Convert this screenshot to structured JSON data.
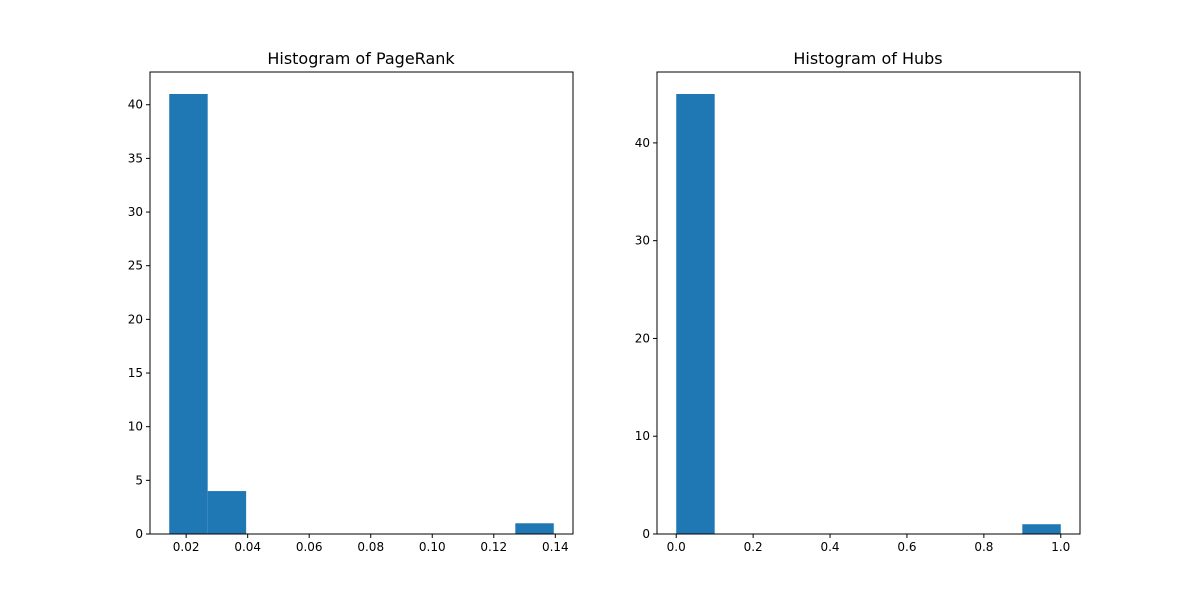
{
  "chart_data": [
    {
      "type": "bar",
      "title": "Histogram of PageRank",
      "xlabel": "",
      "ylabel": "",
      "bins": [
        {
          "x0": 0.0145,
          "x1": 0.027,
          "count": 41
        },
        {
          "x0": 0.027,
          "x1": 0.0395,
          "count": 4
        },
        {
          "x0": 0.0395,
          "x1": 0.052,
          "count": 0
        },
        {
          "x0": 0.052,
          "x1": 0.0645,
          "count": 0
        },
        {
          "x0": 0.0645,
          "x1": 0.077,
          "count": 0
        },
        {
          "x0": 0.077,
          "x1": 0.0895,
          "count": 0
        },
        {
          "x0": 0.0895,
          "x1": 0.102,
          "count": 0
        },
        {
          "x0": 0.102,
          "x1": 0.1145,
          "count": 0
        },
        {
          "x0": 0.1145,
          "x1": 0.127,
          "count": 0
        },
        {
          "x0": 0.127,
          "x1": 0.1395,
          "count": 1
        }
      ],
      "xlim": [
        0.00825,
        0.14575
      ],
      "ylim": [
        0,
        43.05
      ],
      "xticks": [
        0.02,
        0.04,
        0.06,
        0.08,
        0.1,
        0.12,
        0.14
      ],
      "xtick_labels": [
        "0.02",
        "0.04",
        "0.06",
        "0.08",
        "0.10",
        "0.12",
        "0.14"
      ],
      "yticks": [
        0,
        5,
        10,
        15,
        20,
        25,
        30,
        35,
        40
      ],
      "ytick_labels": [
        "0",
        "5",
        "10",
        "15",
        "20",
        "25",
        "30",
        "35",
        "40"
      ],
      "bar_color": "#1f77b4",
      "grid": false
    },
    {
      "type": "bar",
      "title": "Histogram of Hubs",
      "xlabel": "",
      "ylabel": "",
      "bins": [
        {
          "x0": 0.0,
          "x1": 0.1,
          "count": 45
        },
        {
          "x0": 0.1,
          "x1": 0.2,
          "count": 0
        },
        {
          "x0": 0.2,
          "x1": 0.3,
          "count": 0
        },
        {
          "x0": 0.3,
          "x1": 0.4,
          "count": 0
        },
        {
          "x0": 0.4,
          "x1": 0.5,
          "count": 0
        },
        {
          "x0": 0.5,
          "x1": 0.6,
          "count": 0
        },
        {
          "x0": 0.6,
          "x1": 0.7,
          "count": 0
        },
        {
          "x0": 0.7,
          "x1": 0.8,
          "count": 0
        },
        {
          "x0": 0.8,
          "x1": 0.9,
          "count": 0
        },
        {
          "x0": 0.9,
          "x1": 1.0,
          "count": 1
        }
      ],
      "xlim": [
        -0.05,
        1.05
      ],
      "ylim": [
        0,
        47.25
      ],
      "xticks": [
        0.0,
        0.2,
        0.4,
        0.6,
        0.8,
        1.0
      ],
      "xtick_labels": [
        "0.0",
        "0.2",
        "0.4",
        "0.6",
        "0.8",
        "1.0"
      ],
      "yticks": [
        0,
        10,
        20,
        30,
        40
      ],
      "ytick_labels": [
        "0",
        "10",
        "20",
        "30",
        "40"
      ],
      "bar_color": "#1f77b4",
      "grid": false
    }
  ]
}
